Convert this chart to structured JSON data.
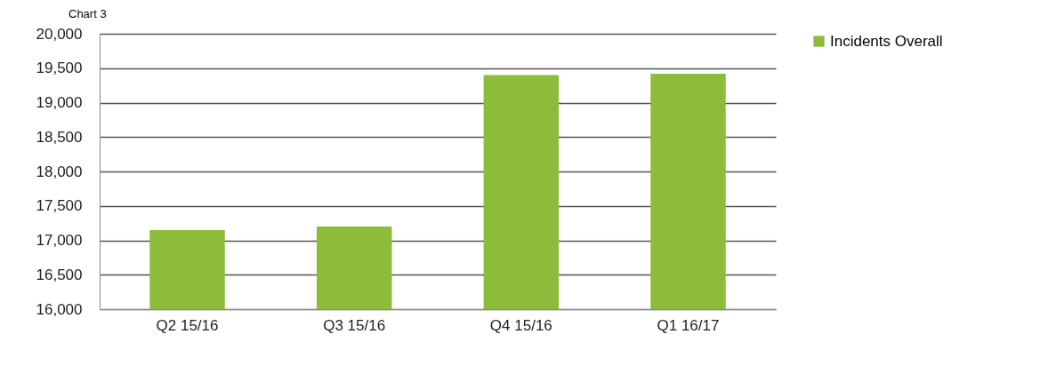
{
  "chart_data": {
    "type": "bar",
    "title": "Chart 3",
    "categories": [
      "Q2 15/16",
      "Q3 15/16",
      "Q4 15/16",
      "Q1 16/17"
    ],
    "series": [
      {
        "name": "Incidents Overall",
        "color": "#8dbb3a",
        "values": [
          17150,
          17200,
          19400,
          19420
        ]
      }
    ],
    "ylim": [
      16000,
      20000
    ],
    "yticks": [
      {
        "value": 16000,
        "label": "16,000"
      },
      {
        "value": 16500,
        "label": "16,500"
      },
      {
        "value": 17000,
        "label": "17,000"
      },
      {
        "value": 17500,
        "label": "17,500"
      },
      {
        "value": 18000,
        "label": "18,000"
      },
      {
        "value": 18500,
        "label": "18,500"
      },
      {
        "value": 19000,
        "label": "19,000"
      },
      {
        "value": 19500,
        "label": "19,500"
      },
      {
        "value": 20000,
        "label": "20,000"
      }
    ],
    "grid": "y",
    "legend": "right"
  }
}
